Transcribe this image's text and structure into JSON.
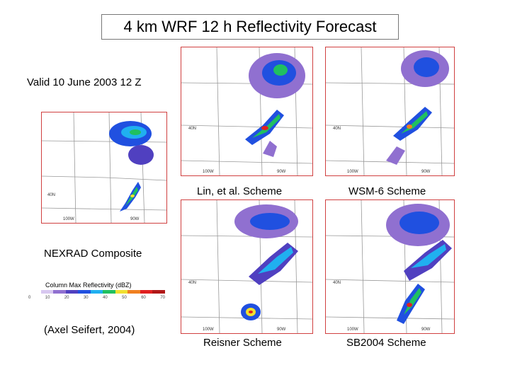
{
  "title": "4 km WRF 12 h Reflectivity Forecast",
  "valid_time": "Valid 10 June 2003 12 Z",
  "panels": {
    "nexrad": {
      "label": "NEXRAD Composite",
      "lat_label": "40N",
      "lon_labels": [
        "100W",
        "90W"
      ]
    },
    "lin": {
      "label": "Lin, et al. Scheme",
      "lat_label": "40N",
      "lon_labels": [
        "100W",
        "90W"
      ]
    },
    "wsm6": {
      "label": "WSM-6 Scheme",
      "lat_label": "40N",
      "lon_labels": [
        "100W",
        "90W"
      ]
    },
    "reisner": {
      "label": "Reisner Scheme",
      "lat_label": "40N",
      "lon_labels": [
        "100W",
        "90W"
      ]
    },
    "sb2004": {
      "label": "SB2004 Scheme",
      "lat_label": "40N",
      "lon_labels": [
        "100W",
        "90W"
      ]
    }
  },
  "colorbar": {
    "title": "Column Max Reflectivity (dBZ)",
    "ticks": [
      "0",
      "10",
      "20",
      "30",
      "40",
      "50",
      "60",
      "70"
    ],
    "colors": [
      "#ffffff",
      "#d8c8f0",
      "#9070d0",
      "#5040c0",
      "#2050e0",
      "#20b0f0",
      "#20c060",
      "#f0e030",
      "#f08020",
      "#e02020",
      "#b01818"
    ]
  },
  "citation": "(Axel Seifert, 2004)"
}
